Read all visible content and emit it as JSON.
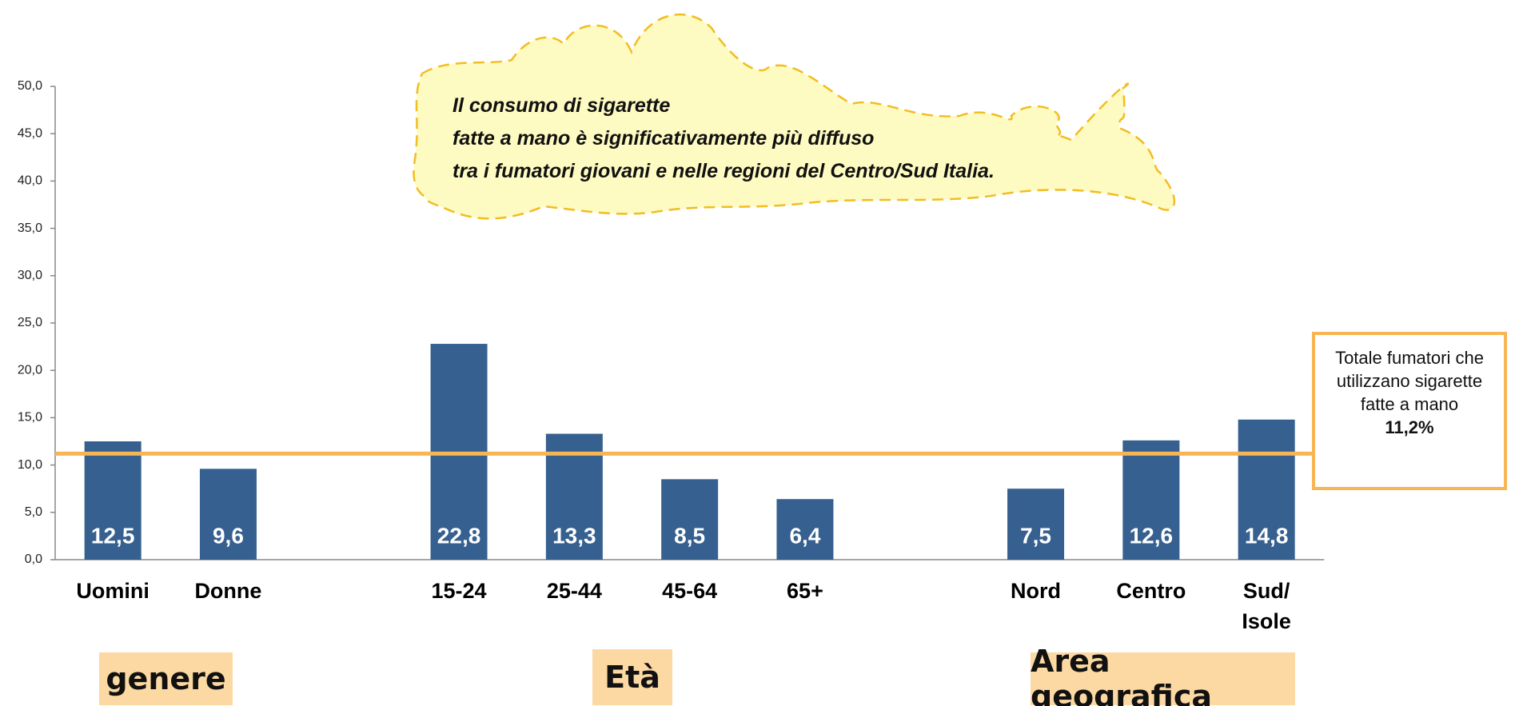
{
  "chart_data": {
    "type": "bar",
    "categories": [
      "Uomini",
      "Donne",
      null,
      "15-24",
      "25-44",
      "45-64",
      "65+",
      null,
      "Nord",
      "Centro",
      "Sud/\nIsole"
    ],
    "values": [
      12.5,
      9.6,
      null,
      22.8,
      13.3,
      8.5,
      6.4,
      null,
      7.5,
      12.6,
      14.8
    ],
    "value_labels": [
      "12,5",
      "9,6",
      null,
      "22,8",
      "13,3",
      "8,5",
      "6,4",
      null,
      "7,5",
      "12,6",
      "14,8"
    ],
    "color": "#36608f",
    "ylim": [
      0,
      50
    ],
    "yticks": [
      {
        "value": 0,
        "label": "0,0"
      },
      {
        "value": 5,
        "label": "5,0"
      },
      {
        "value": 10,
        "label": "10,0"
      },
      {
        "value": 15,
        "label": "15,0"
      },
      {
        "value": 20,
        "label": "20,0"
      },
      {
        "value": 25,
        "label": "25,0"
      },
      {
        "value": 30,
        "label": "30,0"
      },
      {
        "value": 35,
        "label": "35,0"
      },
      {
        "value": 40,
        "label": "40,0"
      },
      {
        "value": 45,
        "label": "45,0"
      },
      {
        "value": 50,
        "label": "50,0"
      }
    ],
    "reference": {
      "value": 11.2,
      "label": "11,2%",
      "text": "Totale fumatori che utilizzano sigarette fatte a mano",
      "color": "#f7b553"
    },
    "annotation": "Il consumo di sigarette\nfatte a mano è significativamente più diffuso\ntra i fumatori giovani e nelle regioni del Centro/Sud Italia.",
    "group_labels": [
      "genere",
      "Età",
      "Area geografica"
    ]
  }
}
